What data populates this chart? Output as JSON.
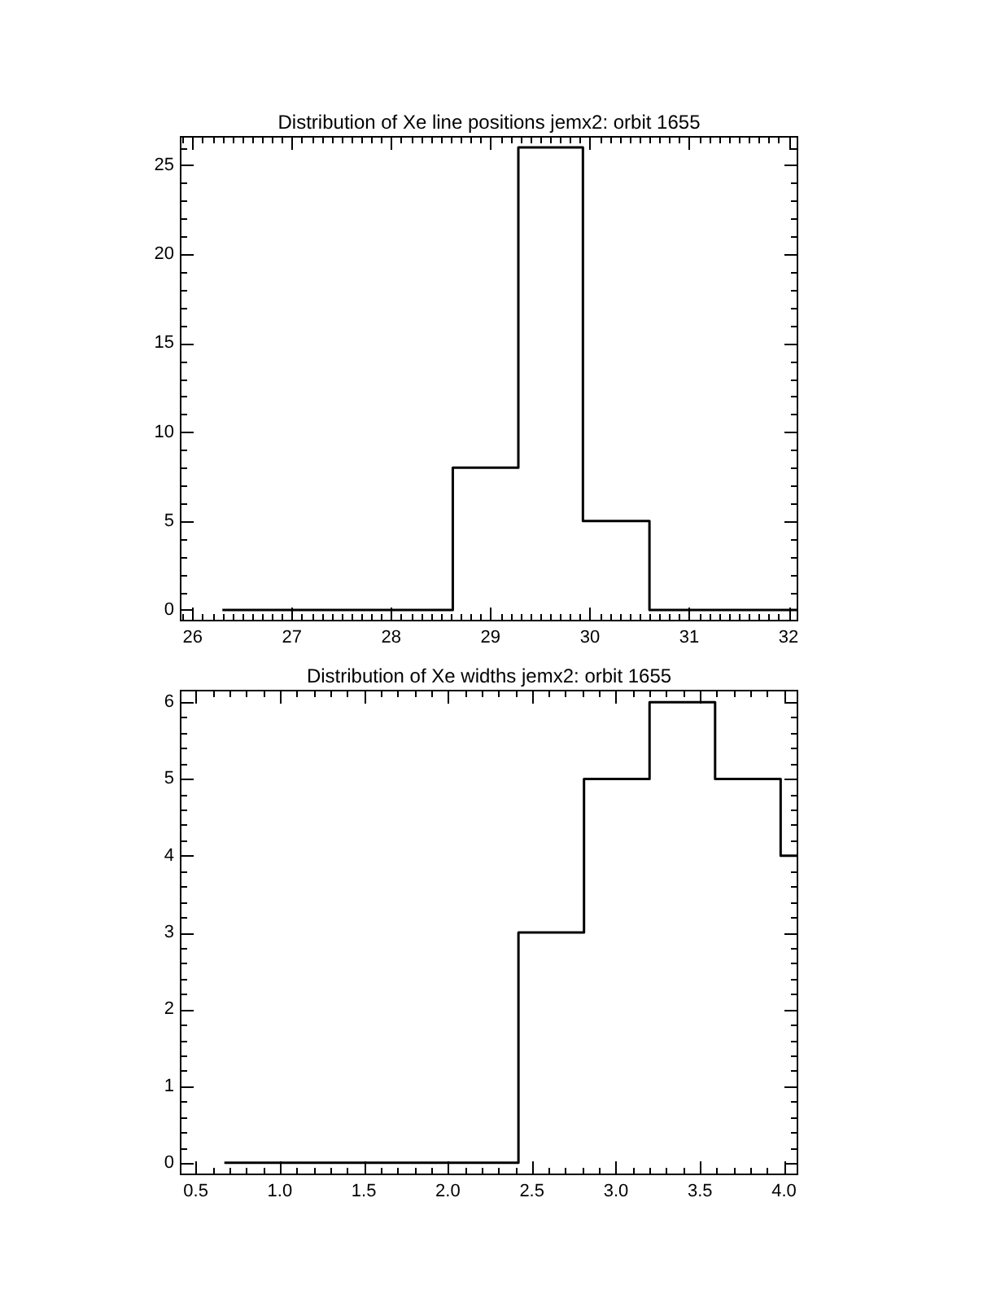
{
  "chart_data": [
    {
      "type": "histogram",
      "title": "Distribution of Xe line positions jemx2: orbit 1655",
      "bins": [
        26.3,
        28.62,
        29.28,
        29.93,
        30.6,
        32.09
      ],
      "values": [
        0,
        8,
        26,
        5,
        0
      ],
      "color": "#000000",
      "xlim": [
        25.88,
        32.09
      ],
      "ylim": [
        -0.6,
        26.6
      ],
      "xticks": [
        26,
        27,
        28,
        29,
        30,
        31,
        32
      ],
      "yticks": [
        0,
        5,
        10,
        15,
        20,
        25
      ]
    },
    {
      "type": "histogram",
      "title": "Distribution of Xe widths jemx2: orbit 1655",
      "bins": [
        0.67,
        2.42,
        2.81,
        3.2,
        3.59,
        3.98,
        4.08
      ],
      "values": [
        0,
        3,
        5,
        6,
        5,
        4
      ],
      "color": "#000000",
      "xlim": [
        0.41,
        4.08
      ],
      "ylim": [
        -0.15,
        6.15
      ],
      "xticks": [
        0.5,
        {
          "value": 1,
          "label": "1.0"
        },
        1.5,
        {
          "value": 2,
          "label": "2.0"
        },
        2.5,
        {
          "value": 3,
          "label": "3.0"
        },
        3.5,
        {
          "value": 4,
          "label": "4.0"
        }
      ],
      "yticks": [
        0,
        1,
        2,
        3,
        4,
        5,
        6
      ]
    }
  ]
}
